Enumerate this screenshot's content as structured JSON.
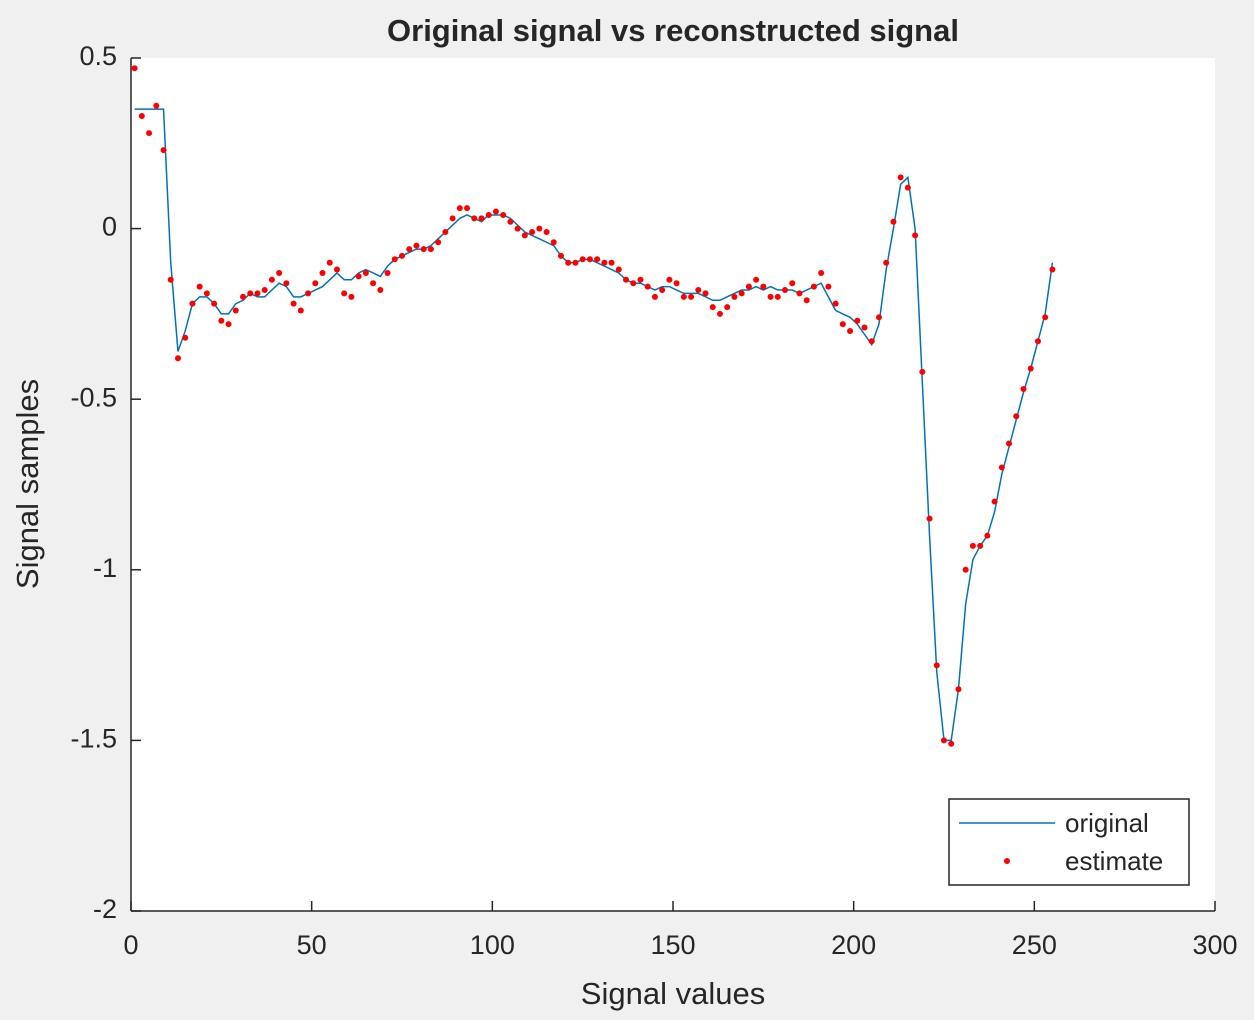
{
  "chart_data": {
    "type": "line",
    "title": "Original signal vs reconstructed signal",
    "xlabel": "Signal values",
    "ylabel": "Signal samples",
    "x": [
      1,
      3,
      5,
      7,
      9,
      11,
      13,
      15,
      17,
      19,
      21,
      23,
      25,
      27,
      29,
      31,
      33,
      35,
      37,
      39,
      41,
      43,
      45,
      47,
      49,
      51,
      53,
      55,
      57,
      59,
      61,
      63,
      65,
      67,
      69,
      71,
      73,
      75,
      77,
      79,
      81,
      83,
      85,
      87,
      89,
      91,
      93,
      95,
      97,
      99,
      101,
      103,
      105,
      107,
      109,
      111,
      113,
      115,
      117,
      119,
      121,
      123,
      125,
      127,
      129,
      131,
      133,
      135,
      137,
      139,
      141,
      143,
      145,
      147,
      149,
      151,
      153,
      155,
      157,
      159,
      161,
      163,
      165,
      167,
      169,
      171,
      173,
      175,
      177,
      179,
      181,
      183,
      185,
      187,
      189,
      191,
      193,
      195,
      197,
      199,
      201,
      203,
      205,
      207,
      209,
      211,
      213,
      215,
      217,
      219,
      221,
      223,
      225,
      227,
      229,
      231,
      233,
      235,
      237,
      239,
      241,
      243,
      245,
      247,
      249,
      251,
      253,
      255
    ],
    "series": [
      {
        "name": "original",
        "color": "#0072bd",
        "style": "line",
        "values": [
          0.35,
          0.35,
          0.35,
          0.35,
          0.35,
          -0.1,
          -0.36,
          -0.3,
          -0.22,
          -0.2,
          -0.2,
          -0.22,
          -0.25,
          -0.25,
          -0.22,
          -0.21,
          -0.19,
          -0.2,
          -0.2,
          -0.18,
          -0.16,
          -0.17,
          -0.2,
          -0.2,
          -0.19,
          -0.18,
          -0.17,
          -0.15,
          -0.13,
          -0.15,
          -0.15,
          -0.13,
          -0.12,
          -0.13,
          -0.14,
          -0.11,
          -0.09,
          -0.08,
          -0.07,
          -0.06,
          -0.06,
          -0.05,
          -0.03,
          -0.01,
          0.01,
          0.03,
          0.04,
          0.03,
          0.02,
          0.04,
          0.04,
          0.04,
          0.03,
          0.01,
          -0.01,
          -0.02,
          -0.03,
          -0.04,
          -0.05,
          -0.08,
          -0.1,
          -0.1,
          -0.09,
          -0.09,
          -0.1,
          -0.11,
          -0.12,
          -0.13,
          -0.15,
          -0.16,
          -0.16,
          -0.17,
          -0.18,
          -0.17,
          -0.17,
          -0.18,
          -0.19,
          -0.19,
          -0.19,
          -0.2,
          -0.21,
          -0.21,
          -0.2,
          -0.19,
          -0.18,
          -0.18,
          -0.17,
          -0.18,
          -0.17,
          -0.18,
          -0.18,
          -0.18,
          -0.19,
          -0.18,
          -0.17,
          -0.16,
          -0.2,
          -0.24,
          -0.25,
          -0.26,
          -0.28,
          -0.31,
          -0.34,
          -0.28,
          -0.12,
          0,
          0.13,
          0.15,
          0,
          -0.45,
          -0.9,
          -1.3,
          -1.5,
          -1.5,
          -1.35,
          -1.1,
          -0.97,
          -0.93,
          -0.9,
          -0.83,
          -0.72,
          -0.64,
          -0.56,
          -0.48,
          -0.41,
          -0.33,
          -0.25,
          -0.1
        ]
      },
      {
        "name": "estimate",
        "color": "#ff0000",
        "style": "dots",
        "values": [
          0.47,
          0.33,
          0.28,
          0.36,
          0.23,
          -0.15,
          -0.38,
          -0.32,
          -0.22,
          -0.17,
          -0.19,
          -0.22,
          -0.27,
          -0.28,
          -0.24,
          -0.2,
          -0.19,
          -0.19,
          -0.18,
          -0.15,
          -0.13,
          -0.16,
          -0.22,
          -0.24,
          -0.19,
          -0.16,
          -0.13,
          -0.1,
          -0.12,
          -0.19,
          -0.2,
          -0.14,
          -0.13,
          -0.16,
          -0.18,
          -0.13,
          -0.09,
          -0.08,
          -0.06,
          -0.05,
          -0.06,
          -0.06,
          -0.04,
          -0.01,
          0.03,
          0.06,
          0.06,
          0.03,
          0.03,
          0.04,
          0.05,
          0.04,
          0.02,
          0,
          -0.02,
          -0.01,
          0,
          -0.01,
          -0.04,
          -0.08,
          -0.1,
          -0.1,
          -0.09,
          -0.09,
          -0.09,
          -0.1,
          -0.1,
          -0.12,
          -0.15,
          -0.16,
          -0.15,
          -0.17,
          -0.2,
          -0.18,
          -0.15,
          -0.16,
          -0.2,
          -0.2,
          -0.18,
          -0.19,
          -0.23,
          -0.25,
          -0.23,
          -0.2,
          -0.19,
          -0.17,
          -0.15,
          -0.17,
          -0.2,
          -0.2,
          -0.18,
          -0.16,
          -0.19,
          -0.21,
          -0.17,
          -0.13,
          -0.17,
          -0.22,
          -0.28,
          -0.3,
          -0.27,
          -0.29,
          -0.33,
          -0.26,
          -0.1,
          0.02,
          0.15,
          0.12,
          -0.02,
          -0.42,
          -0.85,
          -1.28,
          -1.5,
          -1.51,
          -1.35,
          -1,
          -0.93,
          -0.93,
          -0.9,
          -0.8,
          -0.7,
          -0.63,
          -0.55,
          -0.47,
          -0.41,
          -0.33,
          -0.26,
          -0.12
        ]
      }
    ],
    "xlim": [
      0,
      300
    ],
    "xticks": [
      0,
      50,
      100,
      150,
      200,
      250,
      300
    ],
    "ylim": [
      -2,
      0.5
    ],
    "yticks": [
      -2,
      -1.5,
      -1,
      -0.5,
      0,
      0.5
    ],
    "legend": "southeast"
  }
}
